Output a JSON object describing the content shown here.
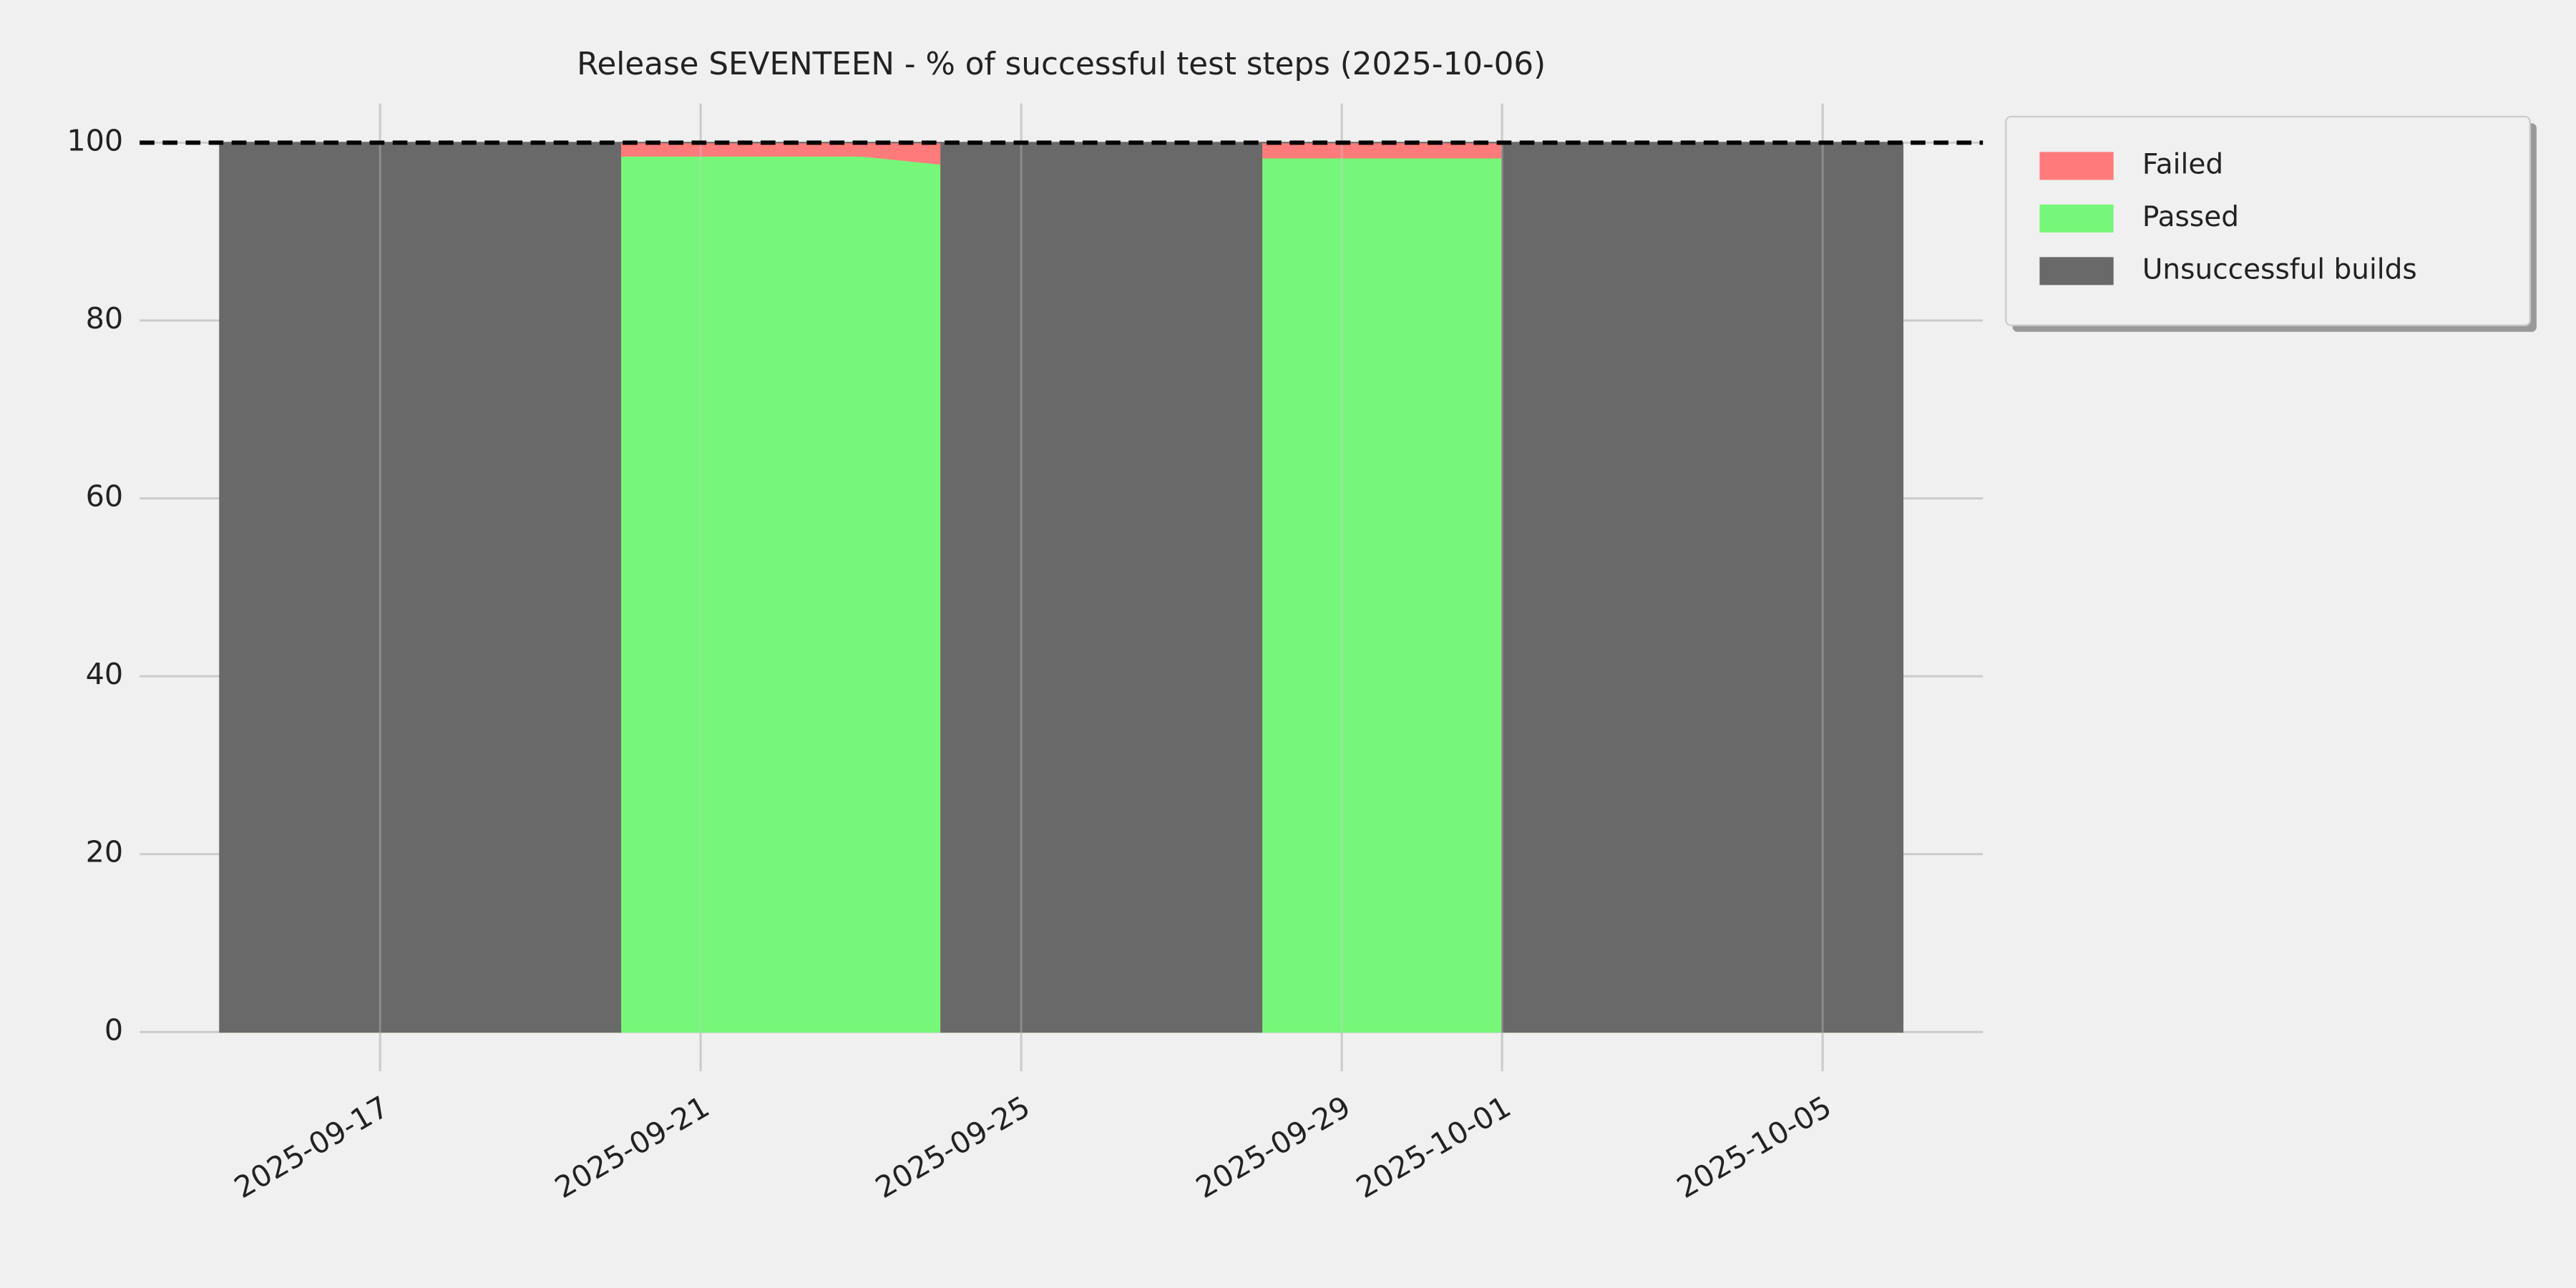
{
  "chart_data": {
    "type": "stacked_area",
    "title": "Release SEVENTEEN - % of successful test steps (2025-10-06)",
    "x": [
      "2025-09-15",
      "2025-09-20",
      "2025-09-20",
      "2025-09-21",
      "2025-09-22",
      "2025-09-23",
      "2025-09-24",
      "2025-09-24",
      "2025-09-28",
      "2025-09-28",
      "2025-09-29",
      "2025-09-30",
      "2025-10-01",
      "2025-10-01",
      "2025-10-06"
    ],
    "series": [
      {
        "name": "Passed",
        "color": "#77f77a",
        "values": [
          0,
          0,
          98.5,
          98.5,
          98.5,
          98.5,
          97.6,
          0,
          0,
          98.3,
          98.3,
          98.3,
          98.3,
          0,
          0
        ]
      },
      {
        "name": "Failed",
        "color": "#ff7b7b",
        "values": [
          0,
          0,
          1.5,
          1.5,
          1.5,
          1.5,
          2.4,
          0,
          0,
          1.7,
          1.7,
          1.7,
          1.7,
          0,
          0
        ]
      },
      {
        "name": "Unsuccessful builds",
        "color": "#696969",
        "values": [
          100,
          100,
          0,
          0,
          0,
          0,
          0,
          100,
          100,
          0,
          0,
          0,
          0,
          100,
          100
        ]
      }
    ],
    "xlim": [
      "2025-09-14",
      "2025-10-07"
    ],
    "xticks": [
      "2025-09-17",
      "2025-09-21",
      "2025-09-25",
      "2025-09-29",
      "2025-10-01",
      "2025-10-05"
    ],
    "ylim": [
      -4.4,
      104.4
    ],
    "yticks": [
      0,
      20,
      40,
      60,
      80,
      100
    ],
    "hline": 100,
    "grid": true,
    "legend": "outside-upper-right"
  }
}
